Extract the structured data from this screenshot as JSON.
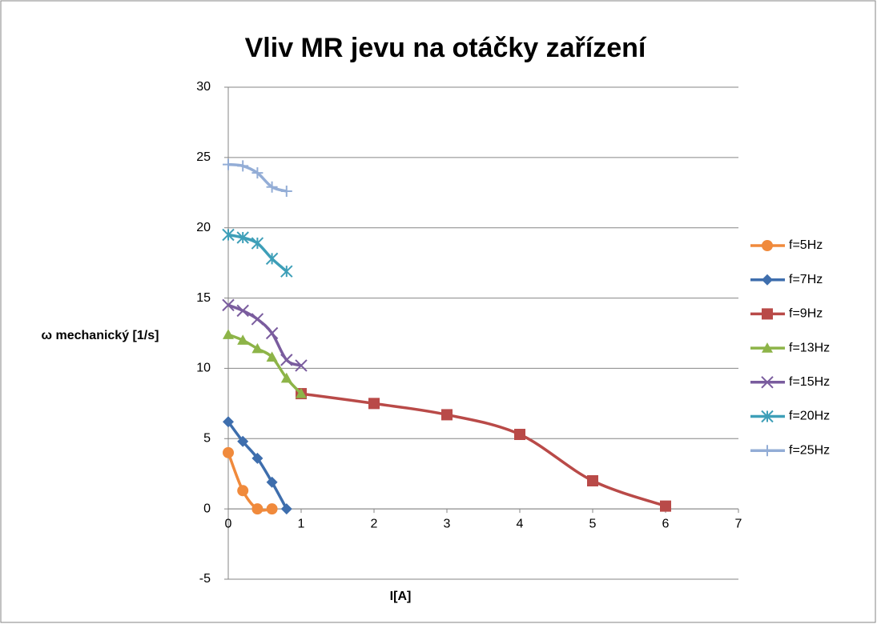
{
  "chart_data": {
    "type": "scatter",
    "smooth": true,
    "title": "Vliv MR jevu na otáčky zařízení",
    "x_label": "I[A]",
    "y_label": "ω mechanický [1/s]",
    "xlim": [
      0,
      7
    ],
    "xticks": [
      0,
      1,
      2,
      3,
      4,
      5,
      6,
      7
    ],
    "ylim": [
      -5,
      30
    ],
    "yticks": [
      -5,
      0,
      5,
      10,
      15,
      20,
      25,
      30
    ],
    "grid": true,
    "legend": "right",
    "series": [
      {
        "name": "f=5Hz",
        "color": "#F08A3C",
        "marker": "circle",
        "x": [
          0,
          0.2,
          0.4,
          0.6
        ],
        "values": [
          4.0,
          1.3,
          0,
          0
        ]
      },
      {
        "name": "f=7Hz",
        "color": "#3E6EAD",
        "marker": "diamond",
        "x": [
          0,
          0.2,
          0.4,
          0.6,
          0.8
        ],
        "values": [
          6.2,
          4.8,
          3.6,
          1.9,
          0
        ]
      },
      {
        "name": "f=9Hz",
        "color": "#B94A48",
        "marker": "square",
        "x": [
          1,
          2,
          3,
          4,
          5,
          6
        ],
        "values": [
          8.2,
          7.5,
          6.7,
          5.3,
          2.0,
          0.2
        ]
      },
      {
        "name": "f=13Hz",
        "color": "#8DB448",
        "marker": "triangle",
        "x": [
          0,
          0.2,
          0.4,
          0.6,
          0.8,
          1
        ],
        "values": [
          12.4,
          12.0,
          11.4,
          10.8,
          9.3,
          8.2
        ]
      },
      {
        "name": "f=15Hz",
        "color": "#7A5C9E",
        "marker": "x",
        "x": [
          0,
          0.2,
          0.4,
          0.6,
          0.8,
          1
        ],
        "values": [
          14.5,
          14.1,
          13.5,
          12.5,
          10.6,
          10.2
        ]
      },
      {
        "name": "f=20Hz",
        "color": "#3E9FB8",
        "marker": "star",
        "x": [
          0,
          0.2,
          0.4,
          0.6,
          0.8
        ],
        "values": [
          19.5,
          19.3,
          18.9,
          17.8,
          16.9
        ]
      },
      {
        "name": "f=25Hz",
        "color": "#93ADD6",
        "marker": "plus",
        "x": [
          0,
          0.2,
          0.4,
          0.6,
          0.8
        ],
        "values": [
          24.5,
          24.4,
          23.9,
          22.9,
          22.6
        ]
      }
    ]
  }
}
